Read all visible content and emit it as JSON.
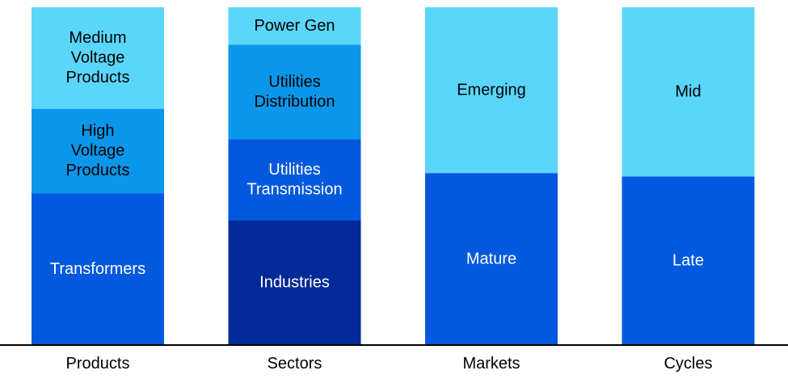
{
  "chart_data": {
    "type": "bar",
    "stacked": true,
    "percent_stacked": true,
    "categories": [
      "Products",
      "Sectors",
      "Markets",
      "Cycles"
    ],
    "stacks": [
      {
        "category": "Products",
        "segments": [
          {
            "label": "Transformers",
            "value": 45,
            "color": "#0359DE",
            "text_color": "#FFFFFF"
          },
          {
            "label": "High\nVoltage\nProducts",
            "value": 25,
            "color": "#0A97EA",
            "text_color": "#000000"
          },
          {
            "label": "Medium\nVoltage\nProducts",
            "value": 30,
            "color": "#5AD6FA",
            "text_color": "#000000"
          }
        ]
      },
      {
        "category": "Sectors",
        "segments": [
          {
            "label": "Industries",
            "value": 37,
            "color": "#022A96",
            "text_color": "#FFFFFF"
          },
          {
            "label": "Utilities\nTransmission",
            "value": 24,
            "color": "#0359DE",
            "text_color": "#FFFFFF"
          },
          {
            "label": "Utilities\nDistribution",
            "value": 28,
            "color": "#0A97EA",
            "text_color": "#000000"
          },
          {
            "label": "Power Gen",
            "value": 11,
            "color": "#5AD6FA",
            "text_color": "#000000"
          }
        ]
      },
      {
        "category": "Markets",
        "segments": [
          {
            "label": "Mature",
            "value": 51,
            "color": "#0359DE",
            "text_color": "#FFFFFF"
          },
          {
            "label": "Emerging",
            "value": 49,
            "color": "#5AD6FA",
            "text_color": "#000000"
          }
        ]
      },
      {
        "category": "Cycles",
        "segments": [
          {
            "label": "Late",
            "value": 50,
            "color": "#0359DE",
            "text_color": "#FFFFFF"
          },
          {
            "label": "Mid",
            "value": 50,
            "color": "#5AD6FA",
            "text_color": "#000000"
          }
        ]
      }
    ],
    "ylim": [
      0,
      100
    ],
    "grid": false,
    "legend": "none",
    "title": "",
    "xlabel": "",
    "ylabel": ""
  }
}
